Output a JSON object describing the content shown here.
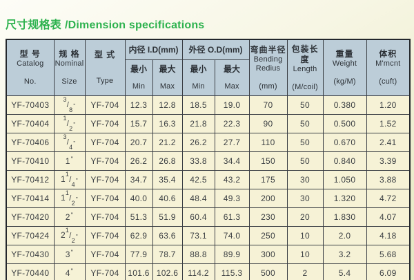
{
  "page": {
    "title_zh": "尺寸规格表",
    "title_en": "/Dimension specifications"
  },
  "colors": {
    "title_green": "#2db24e",
    "header_bg": "#bccdd8",
    "row_bg": "#f6f2d6",
    "border": "#3a3e44"
  },
  "table": {
    "size_unit": "\"",
    "header": {
      "catalog": {
        "zh": "型 号",
        "en1": "Catalog",
        "en2": "No."
      },
      "nominal": {
        "zh": "规 格",
        "en1": "Nominal",
        "en2": "Size"
      },
      "type": {
        "zh": "型 式",
        "en2": "Type"
      },
      "id_group": "内径 I.D(mm)",
      "od_group": "外径 O.D(mm)",
      "min": {
        "zh": "最小",
        "en": "Min"
      },
      "max": {
        "zh": "最大",
        "en": "Max"
      },
      "bending": {
        "zh": "弯曲半径",
        "en1": "Bending",
        "en2": "Redius",
        "unit": "(mm)"
      },
      "length": {
        "zh": "包装长度",
        "en1": "Length",
        "unit": "(M/coil)"
      },
      "weight": {
        "zh": "重量",
        "en1": "Weight",
        "unit": "(kg/M)"
      },
      "volume": {
        "zh": "体积",
        "en1": "M'mcnt",
        "unit": "(cuft)"
      }
    },
    "rows": [
      {
        "catalog": "YF-70403",
        "size": {
          "whole": "",
          "num": "3",
          "den": "8"
        },
        "type": "YF-704",
        "id_min": "12.3",
        "id_max": "12.8",
        "od_min": "18.5",
        "od_max": "19.0",
        "bending": "70",
        "length": "50",
        "weight": "0.380",
        "volume": "1.20"
      },
      {
        "catalog": "YF-70404",
        "size": {
          "whole": "",
          "num": "1",
          "den": "2"
        },
        "type": "YF-704",
        "id_min": "15.7",
        "id_max": "16.3",
        "od_min": "21.8",
        "od_max": "22.3",
        "bending": "90",
        "length": "50",
        "weight": "0.500",
        "volume": "1.52"
      },
      {
        "catalog": "YF-70406",
        "size": {
          "whole": "",
          "num": "3",
          "den": "4"
        },
        "type": "YF-704",
        "id_min": "20.7",
        "id_max": "21.2",
        "od_min": "26.2",
        "od_max": "27.7",
        "bending": "110",
        "length": "50",
        "weight": "0.670",
        "volume": "2.41"
      },
      {
        "catalog": "YF-70410",
        "size": {
          "whole": "1",
          "num": "",
          "den": ""
        },
        "type": "YF-704",
        "id_min": "26.2",
        "id_max": "26.8",
        "od_min": "33.8",
        "od_max": "34.4",
        "bending": "150",
        "length": "50",
        "weight": "0.840",
        "volume": "3.39"
      },
      {
        "catalog": "YF-70412",
        "size": {
          "whole": "1",
          "num": "1",
          "den": "4"
        },
        "type": "YF-704",
        "id_min": "34.7",
        "id_max": "35.4",
        "od_min": "42.5",
        "od_max": "43.2",
        "bending": "175",
        "length": "30",
        "weight": "1.050",
        "volume": "3.88"
      },
      {
        "catalog": "YF-70414",
        "size": {
          "whole": "1",
          "num": "1",
          "den": "2"
        },
        "type": "YF-704",
        "id_min": "40.0",
        "id_max": "40.6",
        "od_min": "48.4",
        "od_max": "49.3",
        "bending": "200",
        "length": "30",
        "weight": "1.320",
        "volume": "4.72"
      },
      {
        "catalog": "YF-70420",
        "size": {
          "whole": "2",
          "num": "",
          "den": ""
        },
        "type": "YF-704",
        "id_min": "51.3",
        "id_max": "51.9",
        "od_min": "60.4",
        "od_max": "61.3",
        "bending": "230",
        "length": "20",
        "weight": "1.830",
        "volume": "4.07"
      },
      {
        "catalog": "YF-70424",
        "size": {
          "whole": "2",
          "num": "1",
          "den": "2"
        },
        "type": "YF-704",
        "id_min": "62.9",
        "id_max": "63.6",
        "od_min": "73.1",
        "od_max": "74.0",
        "bending": "250",
        "length": "10",
        "weight": "2.0",
        "volume": "4.18"
      },
      {
        "catalog": "YF-70430",
        "size": {
          "whole": "3",
          "num": "",
          "den": ""
        },
        "type": "YF-704",
        "id_min": "77.9",
        "id_max": "78.7",
        "od_min": "88.8",
        "od_max": "89.9",
        "bending": "300",
        "length": "10",
        "weight": "3.2",
        "volume": "5.68"
      },
      {
        "catalog": "YF-70440",
        "size": {
          "whole": "4",
          "num": "",
          "den": ""
        },
        "type": "YF-704",
        "id_min": "101.6",
        "id_max": "102.6",
        "od_min": "114.2",
        "od_max": "115.3",
        "bending": "500",
        "length": "2",
        "weight": "5.4",
        "volume": "6.09"
      }
    ]
  }
}
